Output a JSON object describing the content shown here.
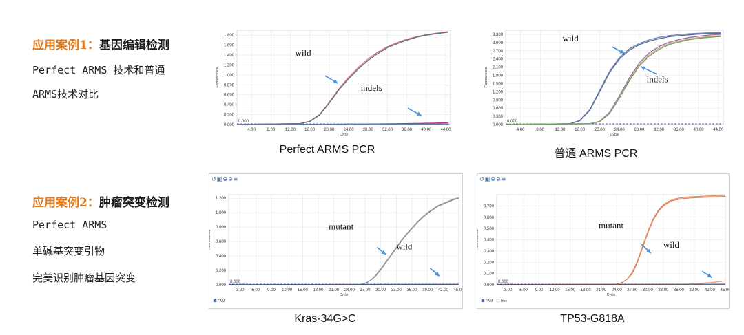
{
  "sections": [
    {
      "title_prefix": "应用案例1：",
      "title_main": "基因编辑检测",
      "lines": [
        "Perfect ARMS 技术和普通",
        "ARMS技术对比"
      ]
    },
    {
      "title_prefix": "应用案例2：",
      "title_main": "肿瘤突变检测",
      "lines": [
        "Perfect ARMS",
        "单碱基突变引物",
        "完美识别肿瘤基因突变"
      ]
    }
  ],
  "colors": {
    "accent": "#e07a1f",
    "arrow": "#4a90d9",
    "baseline": "#2a2aa8"
  },
  "chart_data": [
    {
      "type": "line",
      "caption": "Perfect ARMS PCR",
      "xlabel": "Cycle",
      "ylabel": "Fluorescence",
      "xlim": [
        1,
        45
      ],
      "ylim": [
        0,
        1.9
      ],
      "xticks": [
        4,
        8,
        12,
        16,
        20,
        24,
        28,
        32,
        36,
        40,
        44
      ],
      "xtick_labels": [
        "4.00",
        "8.00",
        "12.00",
        "16.00",
        "20.00",
        "24.00",
        "28.00",
        "32.00",
        "36.00",
        "40.00",
        "44.00"
      ],
      "yticks": [
        0,
        0.2,
        0.4,
        0.6,
        0.8,
        1.0,
        1.2,
        1.4,
        1.6,
        1.8
      ],
      "ytick_labels": [
        "0.000",
        "0.200",
        "0.400",
        "0.600",
        "0.800",
        "1.000",
        "1.200",
        "1.400",
        "1.600",
        "1.800"
      ],
      "threshold_label": "0.000",
      "series": [
        {
          "color": "#e96a6a",
          "x": [
            1,
            14,
            16,
            18,
            20,
            22,
            24,
            26,
            28,
            30,
            32,
            34,
            36,
            38,
            40,
            42,
            44.5
          ],
          "y": [
            0,
            0.02,
            0.07,
            0.2,
            0.45,
            0.72,
            0.95,
            1.15,
            1.32,
            1.46,
            1.57,
            1.65,
            1.72,
            1.77,
            1.81,
            1.84,
            1.87
          ]
        },
        {
          "color": "#4f6f8f",
          "x": [
            1,
            14,
            16,
            18,
            20,
            22,
            24,
            26,
            28,
            30,
            32,
            34,
            36,
            38,
            40,
            42,
            44.5
          ],
          "y": [
            0,
            0.02,
            0.06,
            0.19,
            0.43,
            0.7,
            0.92,
            1.12,
            1.29,
            1.43,
            1.55,
            1.63,
            1.7,
            1.76,
            1.8,
            1.83,
            1.86
          ]
        },
        {
          "color": "#b0307a",
          "x": [
            1,
            20,
            30,
            38,
            44.5
          ],
          "y": [
            0,
            0.005,
            0.012,
            0.022,
            0.035
          ]
        },
        {
          "color": "#5a7fb0",
          "x": [
            1,
            44.5
          ],
          "y": [
            0,
            0.01
          ]
        }
      ],
      "annotations": [
        {
          "text": "wild",
          "x": 13,
          "y": 1.38
        },
        {
          "text": "indels",
          "x": 26.5,
          "y": 0.68
        }
      ],
      "arrows": [
        {
          "x1": 19.2,
          "y1": 0.98,
          "x2": 21.8,
          "y2": 0.83
        },
        {
          "x1": 36.2,
          "y1": 0.33,
          "x2": 39,
          "y2": 0.18
        }
      ]
    },
    {
      "type": "line",
      "caption": "普通 ARMS PCR",
      "xlabel": "Cycle",
      "ylabel": "Fluorescence",
      "xlim": [
        1,
        45
      ],
      "ylim": [
        0,
        3.45
      ],
      "xticks": [
        4,
        8,
        12,
        16,
        20,
        24,
        28,
        32,
        36,
        40,
        44
      ],
      "xtick_labels": [
        "4.00",
        "8.00",
        "12.00",
        "16.00",
        "20.00",
        "24.00",
        "28.00",
        "32.00",
        "36.00",
        "40.00",
        "44.00"
      ],
      "yticks": [
        0,
        0.3,
        0.6,
        0.9,
        1.2,
        1.5,
        1.8,
        2.1,
        2.4,
        2.7,
        3.0,
        3.3
      ],
      "ytick_labels": [
        "0.000",
        "0.300",
        "0.600",
        "0.900",
        "1.200",
        "1.500",
        "1.800",
        "2.100",
        "2.400",
        "2.700",
        "3.000",
        "3.300"
      ],
      "threshold_label": "0.000",
      "series": [
        {
          "color": "#7a7fbf",
          "x": [
            1,
            14,
            16,
            18,
            20,
            22,
            24,
            26,
            28,
            30,
            32,
            34,
            36,
            38,
            40,
            42,
            44.5
          ],
          "y": [
            0,
            0.03,
            0.15,
            0.55,
            1.25,
            1.95,
            2.45,
            2.77,
            2.97,
            3.1,
            3.19,
            3.25,
            3.29,
            3.32,
            3.34,
            3.36,
            3.37
          ]
        },
        {
          "color": "#4f7090",
          "x": [
            1,
            14,
            16,
            18,
            20,
            22,
            24,
            26,
            28,
            30,
            32,
            34,
            36,
            38,
            40,
            42,
            44.5
          ],
          "y": [
            0,
            0.03,
            0.14,
            0.52,
            1.2,
            1.9,
            2.4,
            2.72,
            2.92,
            3.05,
            3.14,
            3.21,
            3.25,
            3.28,
            3.31,
            3.33,
            3.34
          ]
        },
        {
          "color": "#8a6ab0",
          "x": [
            1,
            18,
            20,
            22,
            24,
            26,
            28,
            30,
            32,
            34,
            36,
            38,
            40,
            42,
            44.5
          ],
          "y": [
            0,
            0.03,
            0.12,
            0.45,
            1.05,
            1.7,
            2.25,
            2.62,
            2.86,
            3.01,
            3.11,
            3.18,
            3.23,
            3.27,
            3.3
          ]
        },
        {
          "color": "#e3a36a",
          "x": [
            1,
            18,
            20,
            22,
            24,
            26,
            28,
            30,
            32,
            34,
            36,
            38,
            40,
            42,
            44.5
          ],
          "y": [
            0,
            0.03,
            0.11,
            0.42,
            1.0,
            1.64,
            2.18,
            2.55,
            2.8,
            2.96,
            3.06,
            3.13,
            3.18,
            3.22,
            3.25
          ]
        },
        {
          "color": "#6aa36a",
          "x": [
            1,
            18,
            20,
            22,
            24,
            26,
            28,
            30,
            32,
            34,
            36,
            38,
            40,
            42,
            44.5
          ],
          "y": [
            0,
            0.03,
            0.1,
            0.4,
            0.97,
            1.6,
            2.14,
            2.5,
            2.75,
            2.92,
            3.02,
            3.1,
            3.15,
            3.19,
            3.22
          ]
        }
      ],
      "annotations": [
        {
          "text": "wild",
          "x": 12.5,
          "y": 3.05
        },
        {
          "text": "indels",
          "x": 29.5,
          "y": 1.55
        }
      ],
      "arrows": [
        {
          "x1": 22.5,
          "y1": 2.85,
          "x2": 25,
          "y2": 2.6
        },
        {
          "x1": 31.5,
          "y1": 1.85,
          "x2": 28.3,
          "y2": 2.12
        }
      ]
    },
    {
      "type": "line",
      "caption": "Kras-34G>C",
      "xlabel": "Cycle",
      "ylabel": "Fluorescence",
      "xlim": [
        0.8,
        45
      ],
      "ylim": [
        0,
        1.25
      ],
      "xticks": [
        3,
        6,
        9,
        12,
        15,
        18,
        21,
        24,
        27,
        30,
        33,
        36,
        39,
        42,
        45
      ],
      "xtick_labels": [
        "3.00",
        "6.00",
        "9.00",
        "12.00",
        "15.00",
        "18.00",
        "21.00",
        "24.00",
        "27.00",
        "30.00",
        "33.00",
        "36.00",
        "39.00",
        "42.00",
        "45.00"
      ],
      "yticks": [
        0,
        0.2,
        0.4,
        0.6,
        0.8,
        1.0,
        1.2
      ],
      "ytick_labels": [
        "0.000",
        "0.200",
        "0.400",
        "0.600",
        "0.800",
        "1.000",
        "1.200"
      ],
      "threshold_label": "0.000",
      "legend": [
        "FAM"
      ],
      "series": [
        {
          "color": "#e3a36a",
          "x": [
            0.8,
            26,
            27,
            28,
            29,
            30,
            31,
            32,
            33,
            34,
            35,
            36,
            37,
            38,
            39,
            40,
            41,
            42,
            43,
            44,
            45
          ],
          "y": [
            0,
            0.005,
            0.02,
            0.06,
            0.13,
            0.22,
            0.32,
            0.42,
            0.52,
            0.62,
            0.71,
            0.79,
            0.87,
            0.94,
            1.0,
            1.05,
            1.1,
            1.13,
            1.16,
            1.19,
            1.21
          ]
        },
        {
          "color": "#6f8fb0",
          "x": [
            0.8,
            26,
            27,
            28,
            29,
            30,
            31,
            32,
            33,
            34,
            35,
            36,
            37,
            38,
            39,
            40,
            41,
            42,
            43,
            44,
            45
          ],
          "y": [
            0,
            0.005,
            0.02,
            0.06,
            0.12,
            0.21,
            0.31,
            0.41,
            0.51,
            0.61,
            0.7,
            0.78,
            0.86,
            0.93,
            0.99,
            1.04,
            1.09,
            1.12,
            1.15,
            1.18,
            1.2
          ]
        },
        {
          "color": "#3a5aa8",
          "x": [
            0.8,
            45
          ],
          "y": [
            0.002,
            0.006
          ]
        }
      ],
      "annotations": [
        {
          "text": "mutant",
          "x": 20,
          "y": 0.77
        },
        {
          "text": "wild",
          "x": 33,
          "y": 0.49
        }
      ],
      "arrows": [
        {
          "x1": 29.3,
          "y1": 0.52,
          "x2": 31,
          "y2": 0.42
        },
        {
          "x1": 39.5,
          "y1": 0.23,
          "x2": 41.3,
          "y2": 0.12
        }
      ]
    },
    {
      "type": "line",
      "caption": "TP53-G818A",
      "xlabel": "Cycle",
      "ylabel": "Fluorescence",
      "xlim": [
        0.8,
        45
      ],
      "ylim": [
        0,
        0.8
      ],
      "xticks": [
        3,
        6,
        9,
        12,
        15,
        18,
        21,
        24,
        27,
        30,
        33,
        36,
        39,
        42,
        45
      ],
      "xtick_labels": [
        "3.00",
        "6.00",
        "9.00",
        "12.00",
        "15.00",
        "18.00",
        "21.00",
        "24.00",
        "27.00",
        "30.00",
        "33.00",
        "36.00",
        "39.00",
        "42.00",
        "45.00"
      ],
      "yticks": [
        0,
        0.1,
        0.2,
        0.3,
        0.4,
        0.5,
        0.6,
        0.7
      ],
      "ytick_labels": [
        "0.000",
        "0.100",
        "0.200",
        "0.300",
        "0.400",
        "0.500",
        "0.600",
        "0.700"
      ],
      "threshold_label": "0.000",
      "legend": [
        "FAM",
        "Hex"
      ],
      "series": [
        {
          "color": "#e98a5a",
          "x": [
            0.8,
            24,
            25,
            26,
            27,
            28,
            29,
            30,
            31,
            32,
            33,
            34,
            35,
            36,
            38,
            40,
            42,
            45
          ],
          "y": [
            0,
            0.005,
            0.02,
            0.05,
            0.11,
            0.21,
            0.34,
            0.47,
            0.58,
            0.66,
            0.71,
            0.74,
            0.76,
            0.77,
            0.78,
            0.785,
            0.79,
            0.795
          ]
        },
        {
          "color": "#d8866a",
          "x": [
            0.8,
            24,
            25,
            26,
            27,
            28,
            29,
            30,
            31,
            32,
            33,
            34,
            35,
            36,
            38,
            40,
            42,
            45
          ],
          "y": [
            0,
            0.005,
            0.02,
            0.05,
            0.1,
            0.2,
            0.33,
            0.46,
            0.57,
            0.65,
            0.7,
            0.73,
            0.75,
            0.76,
            0.77,
            0.775,
            0.78,
            0.785
          ]
        },
        {
          "color": "#e9a06a",
          "x": [
            0.8,
            36,
            39,
            41,
            43,
            45
          ],
          "y": [
            0,
            0.002,
            0.008,
            0.015,
            0.024,
            0.035
          ]
        },
        {
          "color": "#3a5aa8",
          "x": [
            0.8,
            45
          ],
          "y": [
            0.002,
            0.005
          ]
        }
      ],
      "annotations": [
        {
          "text": "mutant",
          "x": 20.5,
          "y": 0.5
        },
        {
          "text": "wild",
          "x": 33,
          "y": 0.33
        }
      ],
      "arrows": [
        {
          "x1": 28.8,
          "y1": 0.36,
          "x2": 30.6,
          "y2": 0.28
        },
        {
          "x1": 40.5,
          "y1": 0.12,
          "x2": 42.4,
          "y2": 0.065
        }
      ]
    }
  ]
}
